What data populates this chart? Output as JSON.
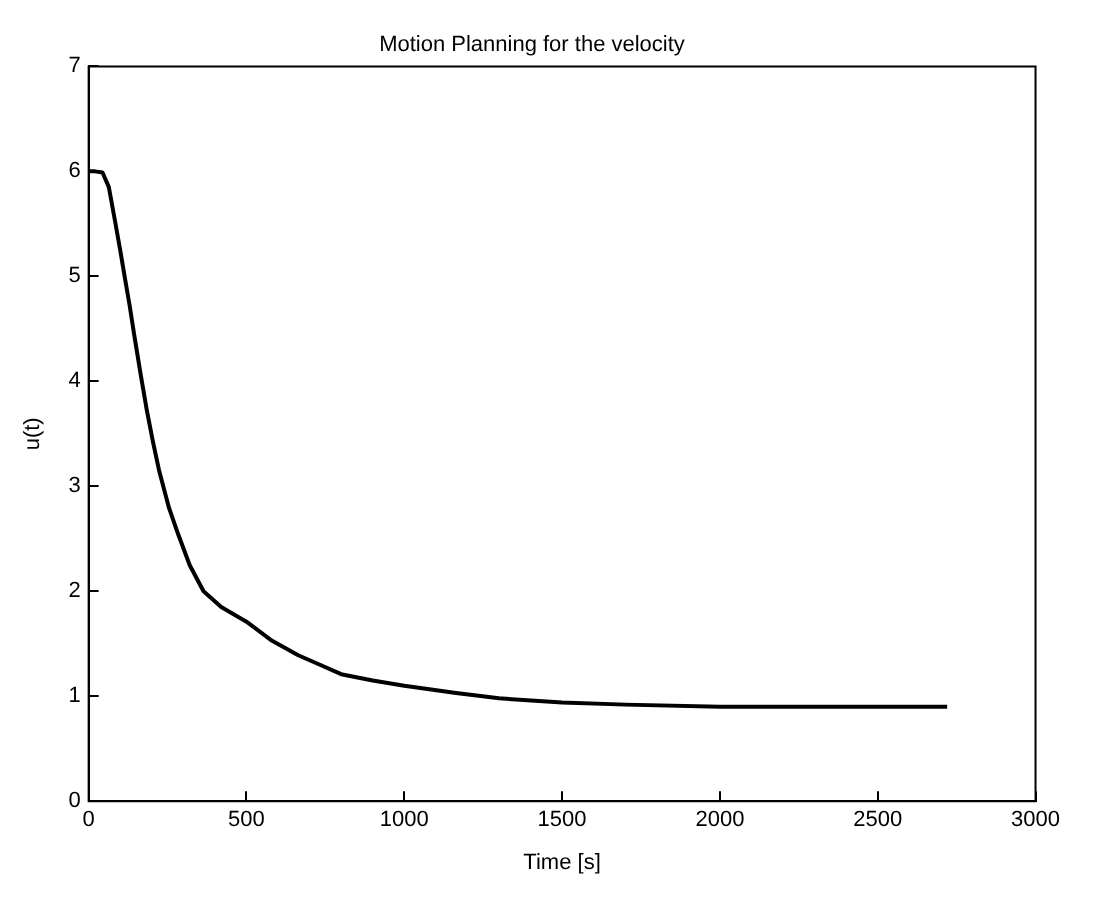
{
  "chart_data": {
    "type": "line",
    "title": "Motion Planning for the velocity",
    "xlabel": "Time [s]",
    "ylabel": "u(t)",
    "x": [
      0,
      20,
      44,
      64,
      84,
      100,
      114,
      130,
      144,
      164,
      184,
      204,
      224,
      254,
      284,
      320,
      364,
      420,
      500,
      580,
      664,
      740,
      800,
      900,
      1000,
      1164,
      1300,
      1500,
      1700,
      2000,
      2300,
      2720
    ],
    "series": [
      {
        "color": "#000000",
        "values": [
          6.0,
          6.0,
          5.99,
          5.85,
          5.52,
          5.25,
          5.0,
          4.72,
          4.45,
          4.08,
          3.73,
          3.42,
          3.14,
          2.8,
          2.54,
          2.25,
          2.0,
          1.85,
          1.71,
          1.53,
          1.39,
          1.29,
          1.21,
          1.15,
          1.1,
          1.03,
          0.98,
          0.94,
          0.92,
          0.9,
          0.9,
          0.9
        ]
      }
    ],
    "xlim": [
      0,
      3000
    ],
    "xticks": [
      0,
      500,
      1000,
      1500,
      2000,
      2500,
      3000
    ],
    "ylim": [
      0,
      7
    ],
    "yticks": [
      0,
      1,
      2,
      3,
      4,
      5,
      6,
      7
    ],
    "grid": false,
    "legend": false,
    "marker": "none",
    "line_style": "solid"
  }
}
